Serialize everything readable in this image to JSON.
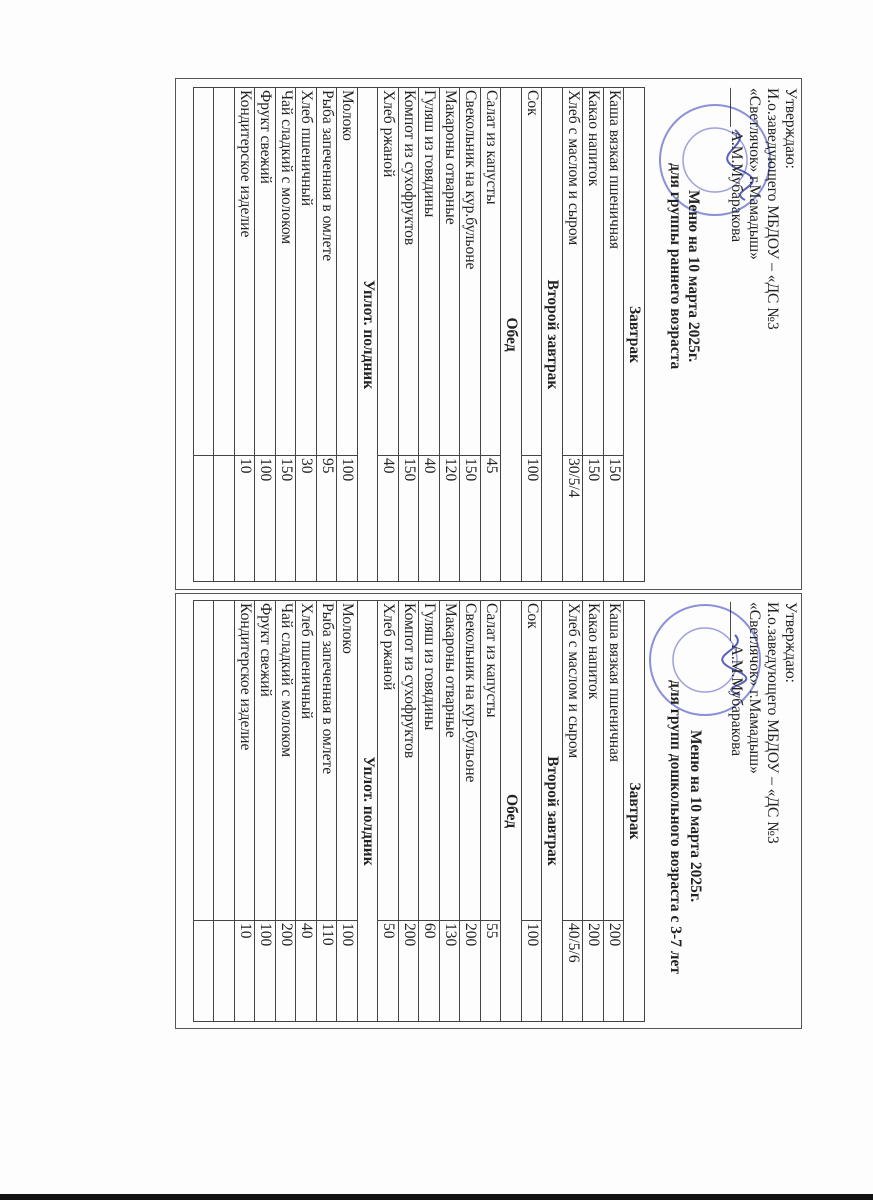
{
  "stamp_color": "#5a63c8",
  "pages": [
    {
      "approval": [
        "Утверждаю:",
        "И.о.заведующего МБДОУ – «ДС №3",
        "«Светлячок» г.Мамадыш»",
        "_____ А.М.Мубаракова"
      ],
      "title": "Меню на  10 марта 2025г.",
      "subtitle": "для группы раннего возраста",
      "rows": [
        {
          "section": "Завтрак"
        },
        {
          "name": "Каша вязкая пшеничная",
          "value": "150"
        },
        {
          "name": "Какао напиток",
          "value": "150"
        },
        {
          "name": "Хлеб с маслом и сыром",
          "value": "30/5/4"
        },
        {
          "section": "Второй завтрак"
        },
        {
          "name": "Сок",
          "value": "100"
        },
        {
          "section": "Обед"
        },
        {
          "name": "Салат из капусты",
          "value": "45"
        },
        {
          "name": "Свекольник на кур.бульоне",
          "value": "150"
        },
        {
          "name": "Макароны отварные",
          "value": "120"
        },
        {
          "name": "Гуляш из говядины",
          "value": "40"
        },
        {
          "name": "Компот из сухофруктов",
          "value": "150"
        },
        {
          "name": "Хлеб ржаной",
          "value": "40"
        },
        {
          "section": "Уплот. полдник"
        },
        {
          "name": "Молоко",
          "value": "100"
        },
        {
          "name": "Рыба запеченная в омлете",
          "value": "95"
        },
        {
          "name": "Хлеб пшеничный",
          "value": "30"
        },
        {
          "name": "Чай сладкий с молоком",
          "value": "150"
        },
        {
          "name": "Фрукт свежий",
          "value": "100"
        },
        {
          "name": "Кондитерское изделие",
          "value": "10"
        },
        {
          "name": "",
          "value": ""
        },
        {
          "name": "",
          "value": ""
        }
      ]
    },
    {
      "approval": [
        "Утверждаю:",
        "И.о.заведующего МБДОУ – «ДС №3",
        "«Светлячок» г.Мамадыш»",
        "_____ А.М.Мубаракова"
      ],
      "title": "Меню на  10 марта 2025г.",
      "subtitle": "для групп дошкольного возраста с 3-7 лет",
      "rows": [
        {
          "section": "Завтрак"
        },
        {
          "name": "Каша вязкая пшеничная",
          "value": "200"
        },
        {
          "name": "Какао напиток",
          "value": "200"
        },
        {
          "name": "Хлеб с маслом и сыром",
          "value": "40/5/6"
        },
        {
          "section": "Второй завтрак"
        },
        {
          "name": "Сок",
          "value": "100"
        },
        {
          "section": "Обед"
        },
        {
          "name": "Салат из капусты",
          "value": "55"
        },
        {
          "name": "Свекольник на кур.бульоне",
          "value": "200"
        },
        {
          "name": "Макароны отварные",
          "value": "130"
        },
        {
          "name": "Гуляш из говядины",
          "value": "60"
        },
        {
          "name": "Компот из сухофруктов",
          "value": "200"
        },
        {
          "name": "Хлеб ржаной",
          "value": "50"
        },
        {
          "section": "Уплот. полдник"
        },
        {
          "name": "Молоко",
          "value": "100"
        },
        {
          "name": "Рыба запеченная в омлете",
          "value": "110"
        },
        {
          "name": "Хлеб пшеничный",
          "value": "40"
        },
        {
          "name": "Чай сладкий с молоком",
          "value": "200"
        },
        {
          "name": "Фрукт свежий",
          "value": "100"
        },
        {
          "name": "Кондитерское изделие",
          "value": "10"
        },
        {
          "name": "",
          "value": ""
        },
        {
          "name": "",
          "value": ""
        }
      ]
    }
  ]
}
